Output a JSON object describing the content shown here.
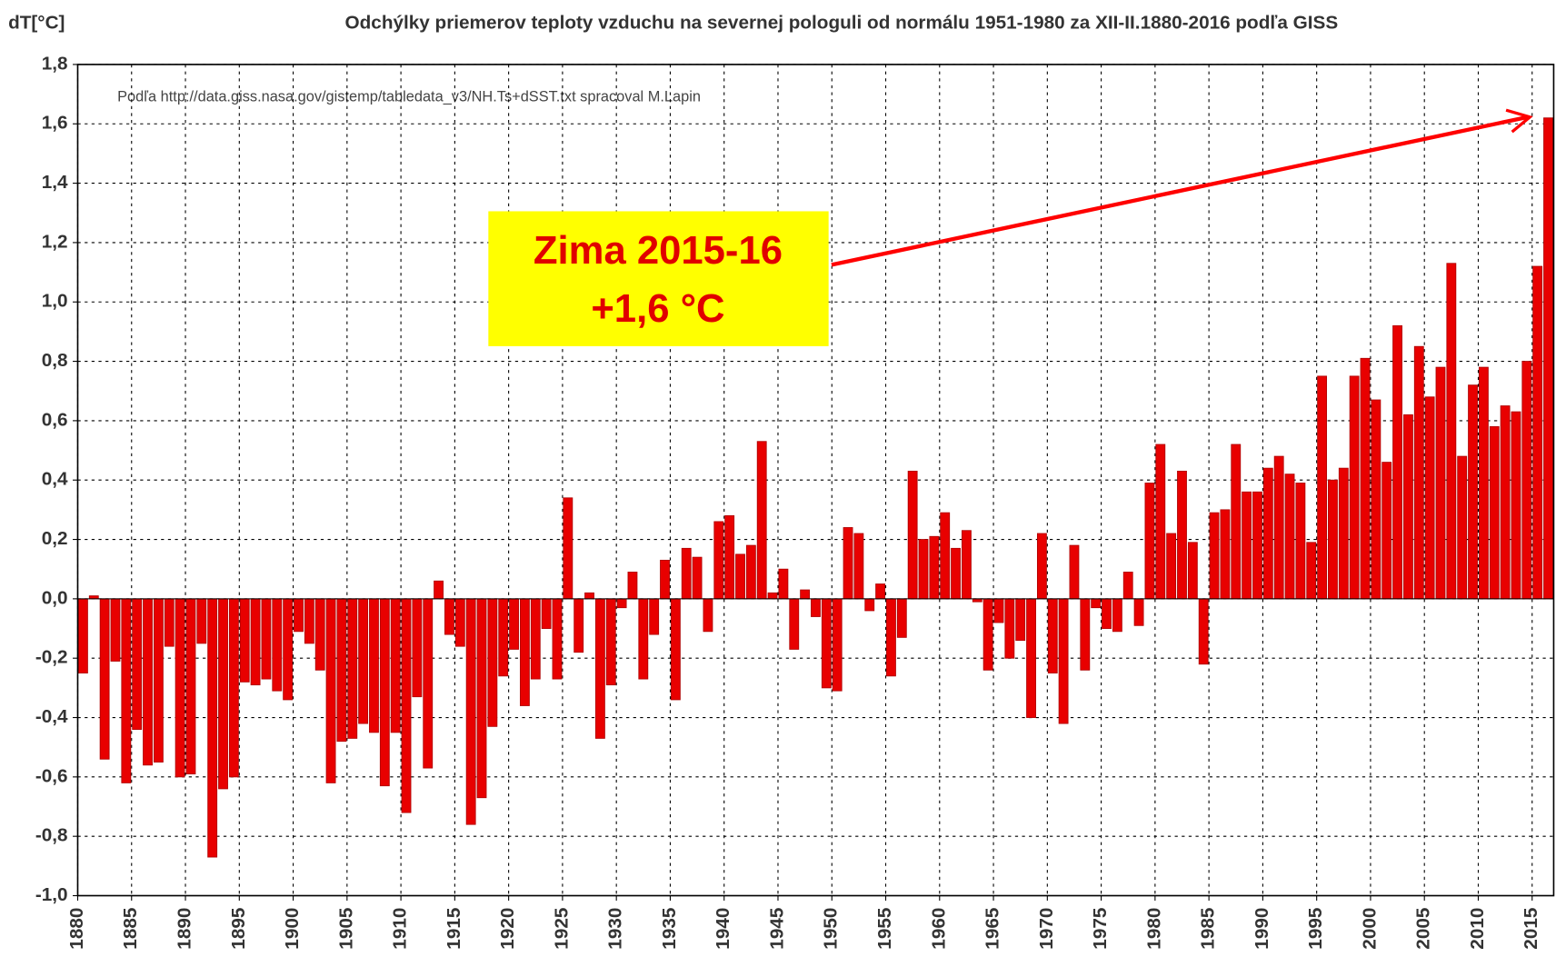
{
  "chart_data": {
    "type": "bar",
    "title": "Odchýlky priemerov teploty vzduchu na severnej pologuli od normálu 1951-1980 za XII-II.1880-2016 podľa GISS",
    "y_label": "dT[°C]",
    "source": "Podľa http://data.giss.nasa.gov/gistemp/tabledata_v3/NH.Ts+dSST.txt spracoval M.Lapin",
    "annotation": [
      "Zima 2015-16",
      "+1,6 °C"
    ],
    "color": "#e80000",
    "grid": true,
    "x_start": 1880,
    "xlim": [
      1880,
      2017
    ],
    "xticks": [
      1880,
      1885,
      1890,
      1895,
      1900,
      1905,
      1910,
      1915,
      1920,
      1925,
      1930,
      1935,
      1940,
      1945,
      1950,
      1955,
      1960,
      1965,
      1970,
      1975,
      1980,
      1985,
      1990,
      1995,
      2000,
      2005,
      2010,
      2015
    ],
    "ylim": [
      -1.0,
      1.8
    ],
    "yticks": [
      {
        "value": -1.0,
        "label": "-1,0"
      },
      {
        "value": -0.8,
        "label": "-0,8"
      },
      {
        "value": -0.6,
        "label": "-0,6"
      },
      {
        "value": -0.4,
        "label": "-0,4"
      },
      {
        "value": -0.2,
        "label": "-0,2"
      },
      {
        "value": 0.0,
        "label": "0,0"
      },
      {
        "value": 0.2,
        "label": "0,2"
      },
      {
        "value": 0.4,
        "label": "0,4"
      },
      {
        "value": 0.6,
        "label": "0,6"
      },
      {
        "value": 0.8,
        "label": "0,8"
      },
      {
        "value": 1.0,
        "label": "1,0"
      },
      {
        "value": 1.2,
        "label": "1,2"
      },
      {
        "value": 1.4,
        "label": "1,4"
      },
      {
        "value": 1.6,
        "label": "1,6"
      },
      {
        "value": 1.8,
        "label": "1,8"
      }
    ],
    "values": [
      -0.25,
      0.01,
      -0.54,
      -0.21,
      -0.62,
      -0.44,
      -0.56,
      -0.55,
      -0.16,
      -0.6,
      -0.59,
      -0.15,
      -0.87,
      -0.64,
      -0.6,
      -0.28,
      -0.29,
      -0.27,
      -0.31,
      -0.34,
      -0.11,
      -0.15,
      -0.24,
      -0.62,
      -0.48,
      -0.47,
      -0.42,
      -0.45,
      -0.63,
      -0.45,
      -0.72,
      -0.33,
      -0.57,
      0.06,
      -0.12,
      -0.16,
      -0.76,
      -0.67,
      -0.43,
      -0.26,
      -0.17,
      -0.36,
      -0.27,
      -0.1,
      -0.27,
      0.34,
      -0.18,
      0.02,
      -0.47,
      -0.29,
      -0.03,
      0.09,
      -0.27,
      -0.12,
      0.13,
      -0.34,
      0.17,
      0.14,
      -0.11,
      0.26,
      0.28,
      0.15,
      0.18,
      0.53,
      0.02,
      0.1,
      -0.17,
      0.03,
      -0.06,
      -0.3,
      -0.31,
      0.24,
      0.22,
      -0.04,
      0.05,
      -0.26,
      -0.13,
      0.43,
      0.2,
      0.21,
      0.29,
      0.17,
      0.23,
      -0.01,
      -0.24,
      -0.08,
      -0.2,
      -0.14,
      -0.4,
      0.22,
      -0.25,
      -0.42,
      0.18,
      -0.24,
      -0.03,
      -0.1,
      -0.11,
      0.09,
      -0.09,
      0.39,
      0.52,
      0.22,
      0.43,
      0.19,
      -0.22,
      0.29,
      0.3,
      0.52,
      0.36,
      0.36,
      0.44,
      0.48,
      0.42,
      0.39,
      0.19,
      0.75,
      0.4,
      0.44,
      0.75,
      0.81,
      0.67,
      0.46,
      0.92,
      0.62,
      0.85,
      0.68,
      0.78,
      1.13,
      0.48,
      0.72,
      0.78,
      0.58,
      0.65,
      0.63,
      0.8,
      1.12,
      1.62
    ]
  }
}
